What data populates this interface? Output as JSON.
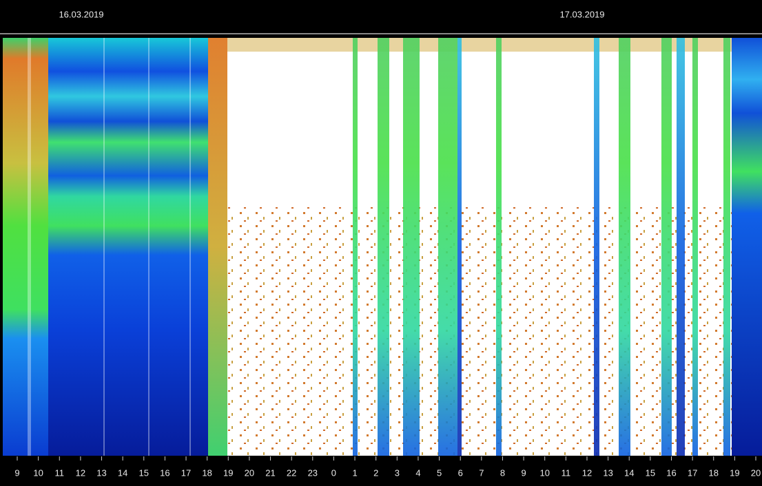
{
  "chart_data": {
    "type": "spectrogram",
    "dates": [
      "16.03.2019",
      "17.03.2019"
    ],
    "categories": [
      "9",
      "10",
      "11",
      "12",
      "13",
      "14",
      "15",
      "16",
      "17",
      "18",
      "19",
      "20",
      "21",
      "22",
      "23",
      "0",
      "1",
      "2",
      "3",
      "4",
      "5",
      "6",
      "7",
      "8",
      "9",
      "10",
      "11",
      "12",
      "13",
      "14",
      "15",
      "16",
      "17",
      "18",
      "19",
      "20"
    ]
  }
}
